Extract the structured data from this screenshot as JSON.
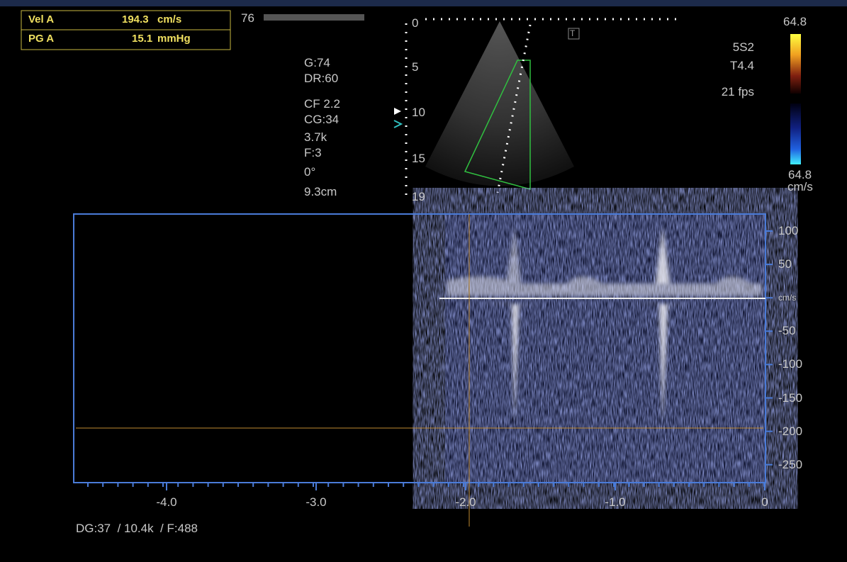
{
  "measurements": [
    {
      "label": "Vel A",
      "value": "194.3",
      "unit": "cm/s"
    },
    {
      "label": "PG A",
      "value": "15.1",
      "unit": "mmHg"
    }
  ],
  "frame_label": "76",
  "image_params": [
    "G:74",
    "DR:60",
    "CF 2.2",
    "CG:34",
    "3.7k",
    "F:3",
    "0°",
    "9.3cm"
  ],
  "depth_scale": [
    "0",
    "5",
    "10",
    "15",
    "19"
  ],
  "marker": "T",
  "probe": [
    "5S2",
    "T4.4",
    "21 fps"
  ],
  "color_scale": {
    "top": "64.8",
    "bottom": "64.8",
    "unit": "cm/s"
  },
  "velocity_scale": [
    "100",
    "50",
    "cm/s",
    "-50",
    "-100",
    "-150",
    "-200",
    "-250"
  ],
  "time_scale": [
    "-4.0",
    "-3.0",
    "-2.0",
    "-1.0",
    "0"
  ],
  "doppler_params": "DG:37  / 10.4k  / F:488"
}
